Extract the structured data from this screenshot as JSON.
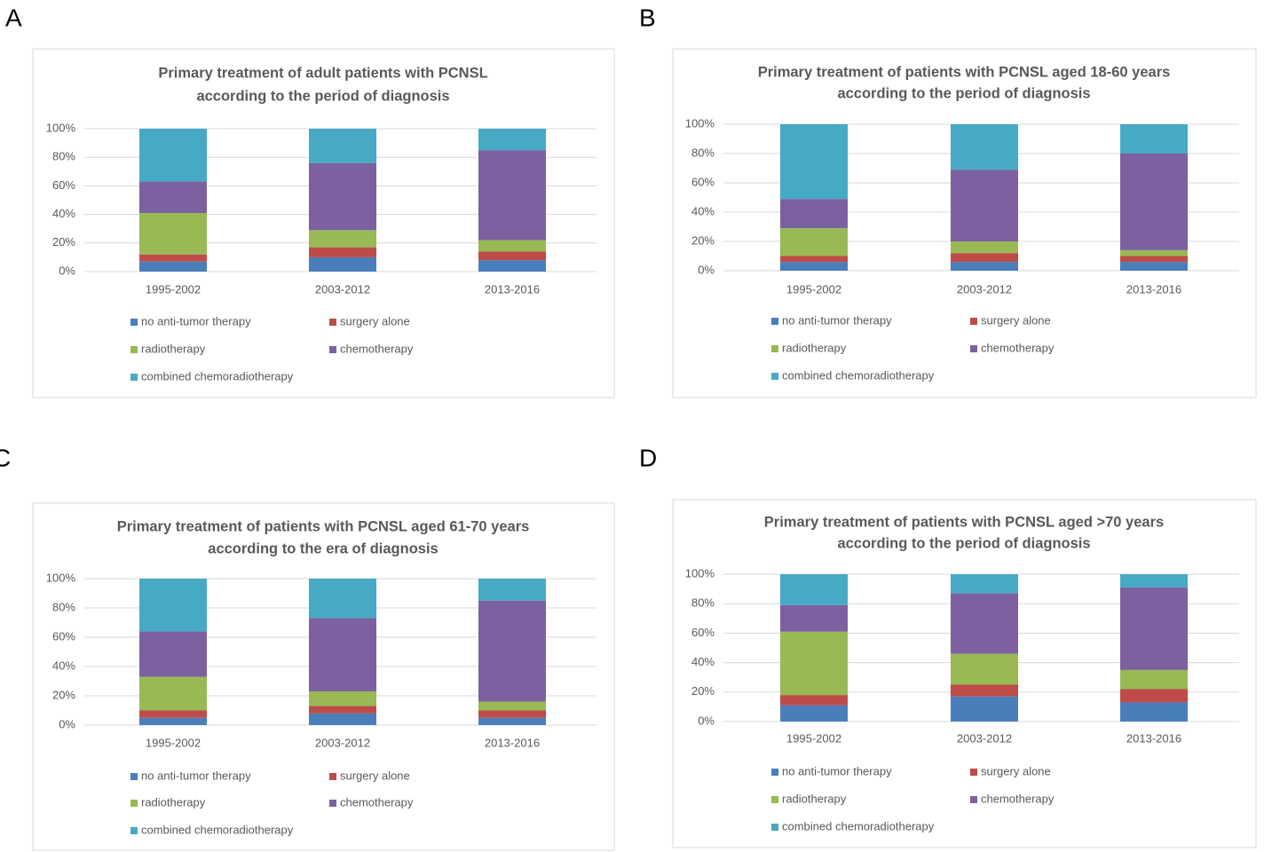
{
  "chart_data": [
    {
      "type": "bar",
      "stacked": true,
      "panel_label": "A",
      "title": [
        "Primary treatment of adult patients with PCNSL",
        "according  to the period of diagnosis"
      ],
      "categories": [
        "1995-2002",
        "2003-2012",
        "2013-2016"
      ],
      "series": [
        {
          "name": "no anti-tumor therapy",
          "color": "#4a7ebb",
          "values": [
            7,
            10,
            8
          ]
        },
        {
          "name": "surgery alone",
          "color": "#be4b48",
          "values": [
            5,
            7,
            6
          ]
        },
        {
          "name": "radiotherapy",
          "color": "#98b954",
          "values": [
            29,
            12,
            8
          ]
        },
        {
          "name": "chemotherapy",
          "color": "#7d60a0",
          "values": [
            22,
            47,
            63
          ]
        },
        {
          "name": "combined chemoradiotherapy",
          "color": "#46aac5",
          "values": [
            37,
            24,
            15
          ]
        }
      ],
      "ylim": [
        0,
        100
      ],
      "yticks": [
        {
          "value": 0,
          "label": "0%"
        },
        {
          "value": 20,
          "label": "20%"
        },
        {
          "value": 40,
          "label": "40%"
        },
        {
          "value": 60,
          "label": "60%"
        },
        {
          "value": 80,
          "label": "80%"
        },
        {
          "value": 100,
          "label": "100%"
        }
      ],
      "grid": true
    },
    {
      "type": "bar",
      "stacked": true,
      "panel_label": "B",
      "title": [
        "Primary treatment of patients with PCNSL aged 18-60 years",
        "according to the period of diagnosis"
      ],
      "categories": [
        "1995-2002",
        "2003-2012",
        "2013-2016"
      ],
      "series": [
        {
          "name": "no anti-tumor therapy",
          "color": "#4a7ebb",
          "values": [
            6,
            6,
            6
          ]
        },
        {
          "name": "surgery alone",
          "color": "#be4b48",
          "values": [
            4,
            6,
            4
          ]
        },
        {
          "name": "radiotherapy",
          "color": "#98b954",
          "values": [
            19,
            8,
            4
          ]
        },
        {
          "name": "chemotherapy",
          "color": "#7d60a0",
          "values": [
            20,
            49,
            66
          ]
        },
        {
          "name": "combined chemoradiotherapy",
          "color": "#46aac5",
          "values": [
            51,
            31,
            20
          ]
        }
      ],
      "ylim": [
        0,
        100
      ],
      "yticks": [
        {
          "value": 0,
          "label": "0%"
        },
        {
          "value": 20,
          "label": "20%"
        },
        {
          "value": 40,
          "label": "40%"
        },
        {
          "value": 60,
          "label": "60%"
        },
        {
          "value": 80,
          "label": "80%"
        },
        {
          "value": 100,
          "label": "100%"
        }
      ],
      "grid": true
    },
    {
      "type": "bar",
      "stacked": true,
      "panel_label": "C",
      "title": [
        "Primary treatment of patients with PCNSL aged 61-70 years",
        "according to the era of diagnosis"
      ],
      "categories": [
        "1995-2002",
        "2003-2012",
        "2013-2016"
      ],
      "series": [
        {
          "name": "no anti-tumor therapy",
          "color": "#4a7ebb",
          "values": [
            5,
            8,
            5
          ]
        },
        {
          "name": "surgery alone",
          "color": "#be4b48",
          "values": [
            5,
            5,
            5
          ]
        },
        {
          "name": "radiotherapy",
          "color": "#98b954",
          "values": [
            23,
            10,
            6
          ]
        },
        {
          "name": "chemotherapy",
          "color": "#7d60a0",
          "values": [
            31,
            50,
            69
          ]
        },
        {
          "name": "combined chemoradiotherapy",
          "color": "#46aac5",
          "values": [
            36,
            27,
            15
          ]
        }
      ],
      "ylim": [
        0,
        100
      ],
      "yticks": [
        {
          "value": 0,
          "label": "0%"
        },
        {
          "value": 20,
          "label": "20%"
        },
        {
          "value": 40,
          "label": "40%"
        },
        {
          "value": 60,
          "label": "60%"
        },
        {
          "value": 80,
          "label": "80%"
        },
        {
          "value": 100,
          "label": "100%"
        }
      ],
      "grid": true
    },
    {
      "type": "bar",
      "stacked": true,
      "panel_label": "D",
      "title": [
        "Primary treatment of patients with PCNSL aged >70 years",
        "according to the period of diagnosis"
      ],
      "categories": [
        "1995-2002",
        "2003-2012",
        "2013-2016"
      ],
      "series": [
        {
          "name": "no anti-tumor therapy",
          "color": "#4a7ebb",
          "values": [
            11,
            17,
            13
          ]
        },
        {
          "name": "surgery alone",
          "color": "#be4b48",
          "values": [
            7,
            8,
            9
          ]
        },
        {
          "name": "radiotherapy",
          "color": "#98b954",
          "values": [
            43,
            21,
            13
          ]
        },
        {
          "name": "chemotherapy",
          "color": "#7d60a0",
          "values": [
            18,
            41,
            56
          ]
        },
        {
          "name": "combined chemoradiotherapy",
          "color": "#46aac5",
          "values": [
            21,
            13,
            9
          ]
        }
      ],
      "ylim": [
        0,
        100
      ],
      "yticks": [
        {
          "value": 0,
          "label": "0%"
        },
        {
          "value": 20,
          "label": "20%"
        },
        {
          "value": 40,
          "label": "40%"
        },
        {
          "value": 60,
          "label": "60%"
        },
        {
          "value": 80,
          "label": "80%"
        },
        {
          "value": 100,
          "label": "100%"
        }
      ],
      "grid": true
    }
  ]
}
